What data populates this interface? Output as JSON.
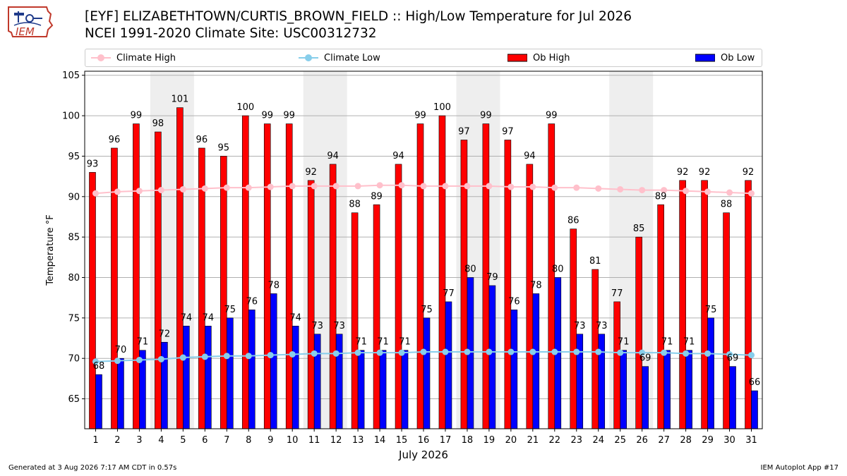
{
  "logo_text": "IEM",
  "title_line1": "[EYF] ELIZABETHTOWN/CURTIS_BROWN_FIELD :: High/Low Temperature for Jul 2026",
  "title_line2": "NCEI 1991-2020 Climate Site: USC00312732",
  "footer_left": "Generated at 3 Aug 2026 7:17 AM CDT in 0.57s",
  "footer_right": "IEM Autoplot App #17",
  "colors": {
    "climate_high": "#ffc0cb",
    "climate_low": "#87ceeb",
    "ob_high": "#ff0000",
    "ob_low": "#0000ff",
    "weekend_shade": "#eeeeee",
    "grid": "#b0b0b0"
  },
  "chart_data": {
    "type": "bar",
    "xlabel": "July 2026",
    "ylabel": "Temperature °F",
    "ylim": [
      61.3,
      105.5
    ],
    "yticks": [
      65,
      70,
      75,
      80,
      85,
      90,
      95,
      100,
      105
    ],
    "grid": true,
    "legend_position": "top",
    "categories": [
      "1",
      "2",
      "3",
      "4",
      "5",
      "6",
      "7",
      "8",
      "9",
      "10",
      "11",
      "12",
      "13",
      "14",
      "15",
      "16",
      "17",
      "18",
      "19",
      "20",
      "21",
      "22",
      "23",
      "24",
      "25",
      "26",
      "27",
      "28",
      "29",
      "30",
      "31"
    ],
    "shaded_days": [
      [
        "4",
        "5"
      ],
      [
        "11",
        "12"
      ],
      [
        "18",
        "19"
      ],
      [
        "25",
        "26"
      ]
    ],
    "series": [
      {
        "name": "Climate High",
        "kind": "line",
        "values": [
          90.4,
          90.6,
          90.7,
          90.8,
          90.9,
          91.0,
          91.1,
          91.1,
          91.2,
          91.3,
          91.3,
          91.3,
          91.3,
          91.4,
          91.4,
          91.3,
          91.3,
          91.3,
          91.3,
          91.2,
          91.2,
          91.1,
          91.1,
          91.0,
          90.9,
          90.8,
          90.8,
          90.7,
          90.6,
          90.5,
          90.4
        ]
      },
      {
        "name": "Climate Low",
        "kind": "line",
        "values": [
          69.6,
          69.7,
          69.8,
          69.9,
          70.1,
          70.2,
          70.3,
          70.3,
          70.4,
          70.5,
          70.6,
          70.6,
          70.7,
          70.7,
          70.7,
          70.8,
          70.8,
          70.8,
          70.8,
          70.8,
          70.8,
          70.8,
          70.8,
          70.8,
          70.7,
          70.7,
          70.7,
          70.6,
          70.6,
          70.5,
          70.4
        ]
      },
      {
        "name": "Ob High",
        "kind": "bar",
        "values": [
          93,
          96,
          99,
          98,
          101,
          96,
          95,
          100,
          99,
          99,
          92,
          94,
          88,
          89,
          94,
          99,
          100,
          97,
          99,
          97,
          94,
          99,
          86,
          81,
          77,
          85,
          89,
          92,
          92,
          88,
          92
        ]
      },
      {
        "name": "Ob Low",
        "kind": "bar",
        "values": [
          68,
          70,
          71,
          72,
          74,
          74,
          75,
          76,
          78,
          74,
          73,
          73,
          71,
          71,
          71,
          75,
          77,
          80,
          79,
          76,
          78,
          80,
          73,
          73,
          71,
          69,
          71,
          71,
          75,
          69,
          66
        ]
      }
    ]
  }
}
